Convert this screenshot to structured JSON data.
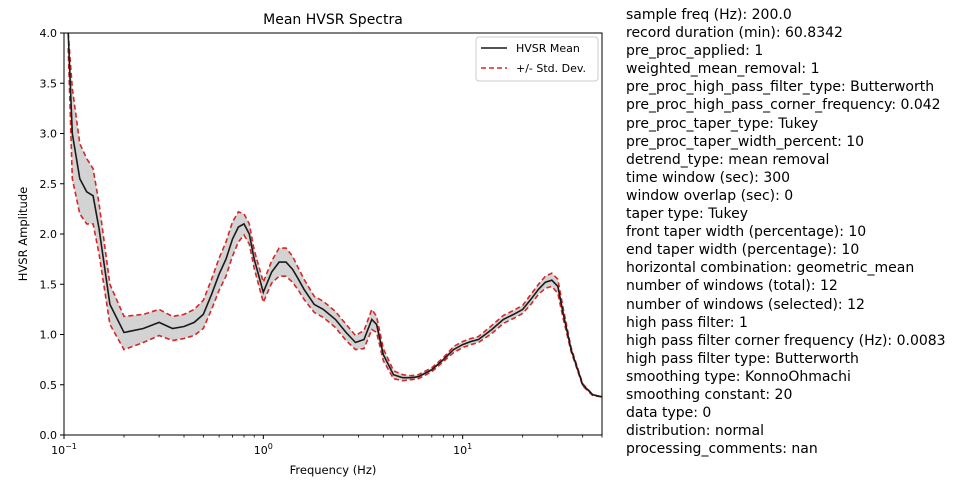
{
  "chart_data": {
    "type": "line",
    "title": "Mean HVSR Spectra",
    "xlabel": "Frequency (Hz)",
    "ylabel": "HVSR Amplitude",
    "xscale": "log",
    "xlim": [
      0.1,
      50
    ],
    "ylim": [
      0.0,
      4.0
    ],
    "x_ticks": [
      {
        "base": "10",
        "exp": "−1",
        "value": 0.1
      },
      {
        "base": "10",
        "exp": "0",
        "value": 1
      },
      {
        "base": "10",
        "exp": "1",
        "value": 10
      }
    ],
    "y_ticks": [
      "0.0",
      "0.5",
      "1.0",
      "1.5",
      "2.0",
      "2.5",
      "3.0",
      "3.5",
      "4.0"
    ],
    "grid": false,
    "legend_position": "top-right",
    "series": [
      {
        "name": "HVSR Mean",
        "color": "#1a1a1a",
        "style": "solid"
      },
      {
        "name": "+/- Std. Dev.",
        "color": "#d62728",
        "style": "dashed"
      }
    ],
    "fill_color": "#d3d3d3",
    "x": [
      0.105,
      0.11,
      0.12,
      0.13,
      0.14,
      0.15,
      0.17,
      0.2,
      0.25,
      0.3,
      0.35,
      0.4,
      0.45,
      0.5,
      0.55,
      0.6,
      0.65,
      0.7,
      0.75,
      0.8,
      0.85,
      0.9,
      1.0,
      1.1,
      1.2,
      1.3,
      1.4,
      1.5,
      1.6,
      1.8,
      2.0,
      2.3,
      2.6,
      2.9,
      3.2,
      3.5,
      3.7,
      4.0,
      4.5,
      5.0,
      5.5,
      6.0,
      7.0,
      8.0,
      9.0,
      10.0,
      11.0,
      12.0,
      14.0,
      16.0,
      18.0,
      20.0,
      22.0,
      24.0,
      26.0,
      28.0,
      30.0,
      32.0,
      35.0,
      40.0,
      45.0,
      50.0
    ],
    "mean": [
      4.0,
      3.0,
      2.55,
      2.42,
      2.38,
      2.05,
      1.3,
      1.02,
      1.06,
      1.12,
      1.06,
      1.08,
      1.12,
      1.2,
      1.4,
      1.6,
      1.75,
      1.95,
      2.07,
      2.1,
      2.0,
      1.75,
      1.42,
      1.62,
      1.72,
      1.72,
      1.65,
      1.55,
      1.45,
      1.3,
      1.25,
      1.15,
      1.02,
      0.92,
      0.95,
      1.15,
      1.1,
      0.8,
      0.6,
      0.57,
      0.57,
      0.58,
      0.65,
      0.75,
      0.85,
      0.9,
      0.93,
      0.95,
      1.05,
      1.15,
      1.2,
      1.25,
      1.35,
      1.45,
      1.52,
      1.54,
      1.48,
      1.2,
      0.85,
      0.5,
      0.4,
      0.38
    ],
    "upper": [
      4.0,
      3.45,
      2.9,
      2.75,
      2.65,
      2.3,
      1.5,
      1.18,
      1.2,
      1.25,
      1.18,
      1.2,
      1.25,
      1.34,
      1.55,
      1.76,
      1.92,
      2.12,
      2.22,
      2.2,
      2.1,
      1.84,
      1.52,
      1.73,
      1.86,
      1.86,
      1.78,
      1.66,
      1.55,
      1.38,
      1.33,
      1.23,
      1.1,
      0.99,
      1.04,
      1.25,
      1.18,
      0.86,
      0.64,
      0.6,
      0.59,
      0.6,
      0.67,
      0.77,
      0.88,
      0.93,
      0.96,
      0.98,
      1.09,
      1.19,
      1.24,
      1.29,
      1.4,
      1.5,
      1.58,
      1.61,
      1.55,
      1.25,
      0.87,
      0.51,
      0.4,
      0.38
    ],
    "lower": [
      3.85,
      2.55,
      2.2,
      2.1,
      2.1,
      1.8,
      1.1,
      0.85,
      0.92,
      0.99,
      0.94,
      0.96,
      0.99,
      1.06,
      1.25,
      1.44,
      1.58,
      1.78,
      1.92,
      1.99,
      1.9,
      1.66,
      1.32,
      1.51,
      1.58,
      1.58,
      1.52,
      1.44,
      1.35,
      1.22,
      1.17,
      1.07,
      0.94,
      0.85,
      0.86,
      1.05,
      1.02,
      0.74,
      0.56,
      0.54,
      0.55,
      0.56,
      0.63,
      0.73,
      0.82,
      0.87,
      0.9,
      0.92,
      1.01,
      1.11,
      1.16,
      1.21,
      1.3,
      1.4,
      1.46,
      1.48,
      1.41,
      1.15,
      0.83,
      0.49,
      0.39,
      0.38
    ]
  },
  "metadata_lines": [
    "sample freq (Hz): 200.0",
    "record duration (min): 60.8342",
    "pre_proc_applied: 1",
    "weighted_mean_removal: 1",
    "pre_proc_high_pass_filter_type: Butterworth",
    "pre_proc_high_pass_corner_frequency: 0.042",
    "pre_proc_taper_type: Tukey",
    "pre_proc_taper_width_percent: 10",
    "detrend_type: mean removal",
    "time window (sec): 300",
    "window overlap (sec): 0",
    "taper type: Tukey",
    "front taper width (percentage): 10",
    "end taper width (percentage): 10",
    "horizontal combination: geometric_mean",
    "number of windows (total): 12",
    "number of windows (selected): 12",
    "high pass filter: 1",
    "high pass filter corner frequency (Hz): 0.0083",
    "high pass filter type: Butterworth",
    "smoothing type: KonnoOhmachi",
    "smoothing constant: 20",
    "data type: 0",
    "distribution: normal",
    "processing_comments: nan"
  ]
}
